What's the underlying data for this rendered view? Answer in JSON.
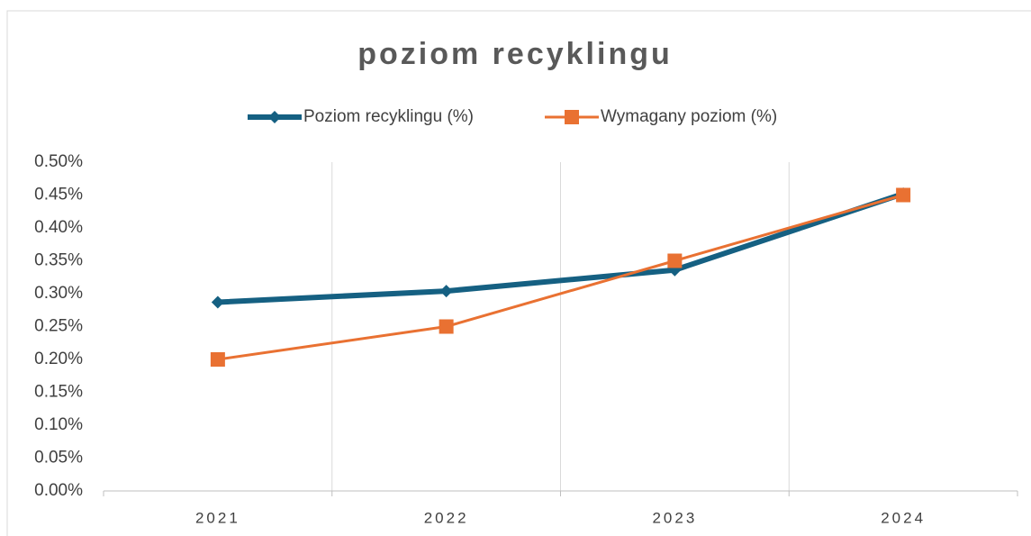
{
  "chart_data": {
    "type": "line",
    "title": "poziom recyklingu",
    "categories": [
      "2021",
      "2022",
      "2023",
      "2024"
    ],
    "series": [
      {
        "name": "Poziom recyklingu (%)",
        "color": "#156082",
        "values": [
          0.287,
          0.304,
          0.336,
          0.452
        ]
      },
      {
        "name": "Wymagany poziom (%)",
        "color": "#e97132",
        "values": [
          0.2,
          0.25,
          0.35,
          0.45
        ]
      }
    ],
    "ylim": [
      0,
      0.5
    ],
    "yticks": [
      {
        "value": 0,
        "label": "0.00%"
      },
      {
        "value": 0.05,
        "label": "0.05%"
      },
      {
        "value": 0.1,
        "label": "0.10%"
      },
      {
        "value": 0.15,
        "label": "0.15%"
      },
      {
        "value": 0.2,
        "label": "0.20%"
      },
      {
        "value": 0.25,
        "label": "0.25%"
      },
      {
        "value": 0.3,
        "label": "0.30%"
      },
      {
        "value": 0.35,
        "label": "0.35%"
      },
      {
        "value": 0.4,
        "label": "0.40%"
      },
      {
        "value": 0.45,
        "label": "0.45%"
      },
      {
        "value": 0.5,
        "label": "0.50%"
      }
    ],
    "grid": "vertical",
    "legend": "top"
  }
}
